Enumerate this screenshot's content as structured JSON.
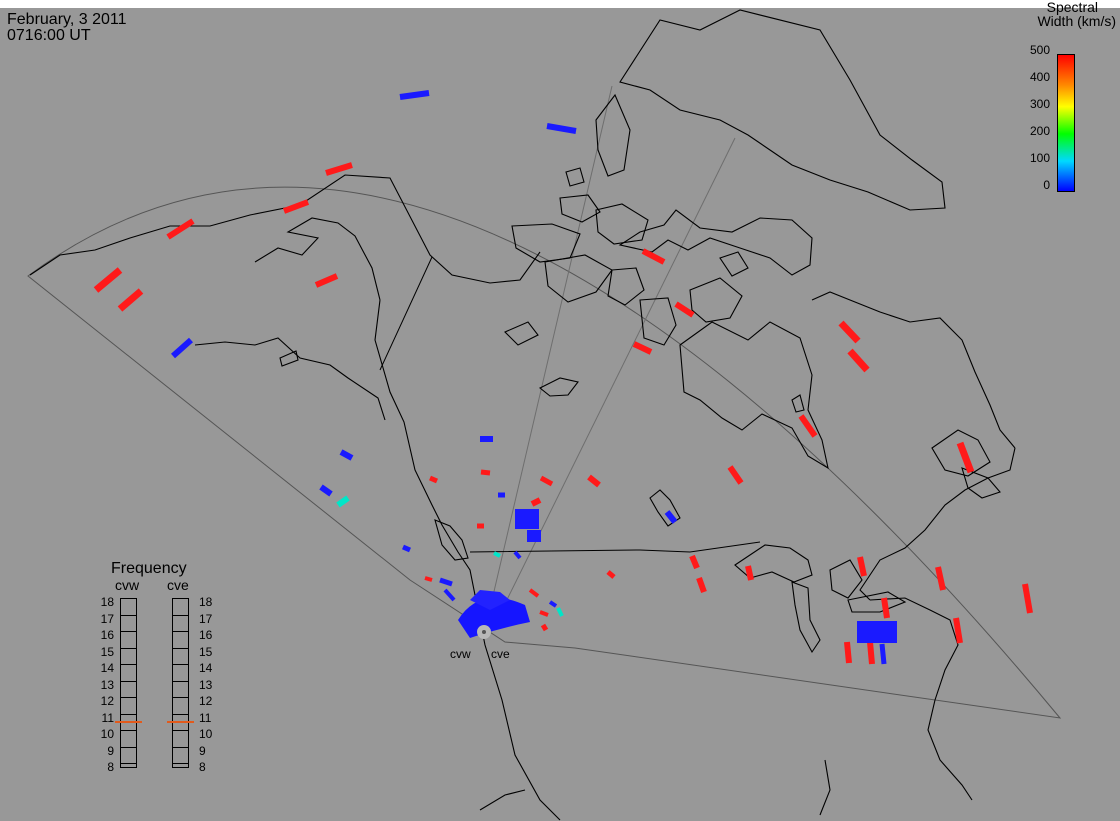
{
  "header": {
    "date": "February, 3 2011",
    "time": "0716:00 UT"
  },
  "colorbar": {
    "title_line1": "Spectral",
    "title_line2": "Width (km/s)",
    "ticks": [
      "500",
      "400",
      "300",
      "200",
      "100",
      "0"
    ],
    "range": [
      0,
      500
    ],
    "colors": [
      "#0000ff",
      "#00d9ff",
      "#00ff00",
      "#ffff00",
      "#ff8800",
      "#ff0000"
    ]
  },
  "frequency_panel": {
    "title": "Frequency",
    "radars": [
      "cvw",
      "cve"
    ],
    "scale": [
      "18",
      "17",
      "16",
      "15",
      "14",
      "13",
      "12",
      "11",
      "10",
      "9",
      "8"
    ],
    "current_mhz": {
      "cvw": 10.8,
      "cve": 10.8
    },
    "marker_color": "#e25a1c"
  },
  "radar_sites": {
    "west": "cvw",
    "east": "cve"
  },
  "map_colors": {
    "background": "#989898",
    "coastline": "#000000",
    "fov_outline": "#555555",
    "fov_beam": "#6e6e6e"
  }
}
